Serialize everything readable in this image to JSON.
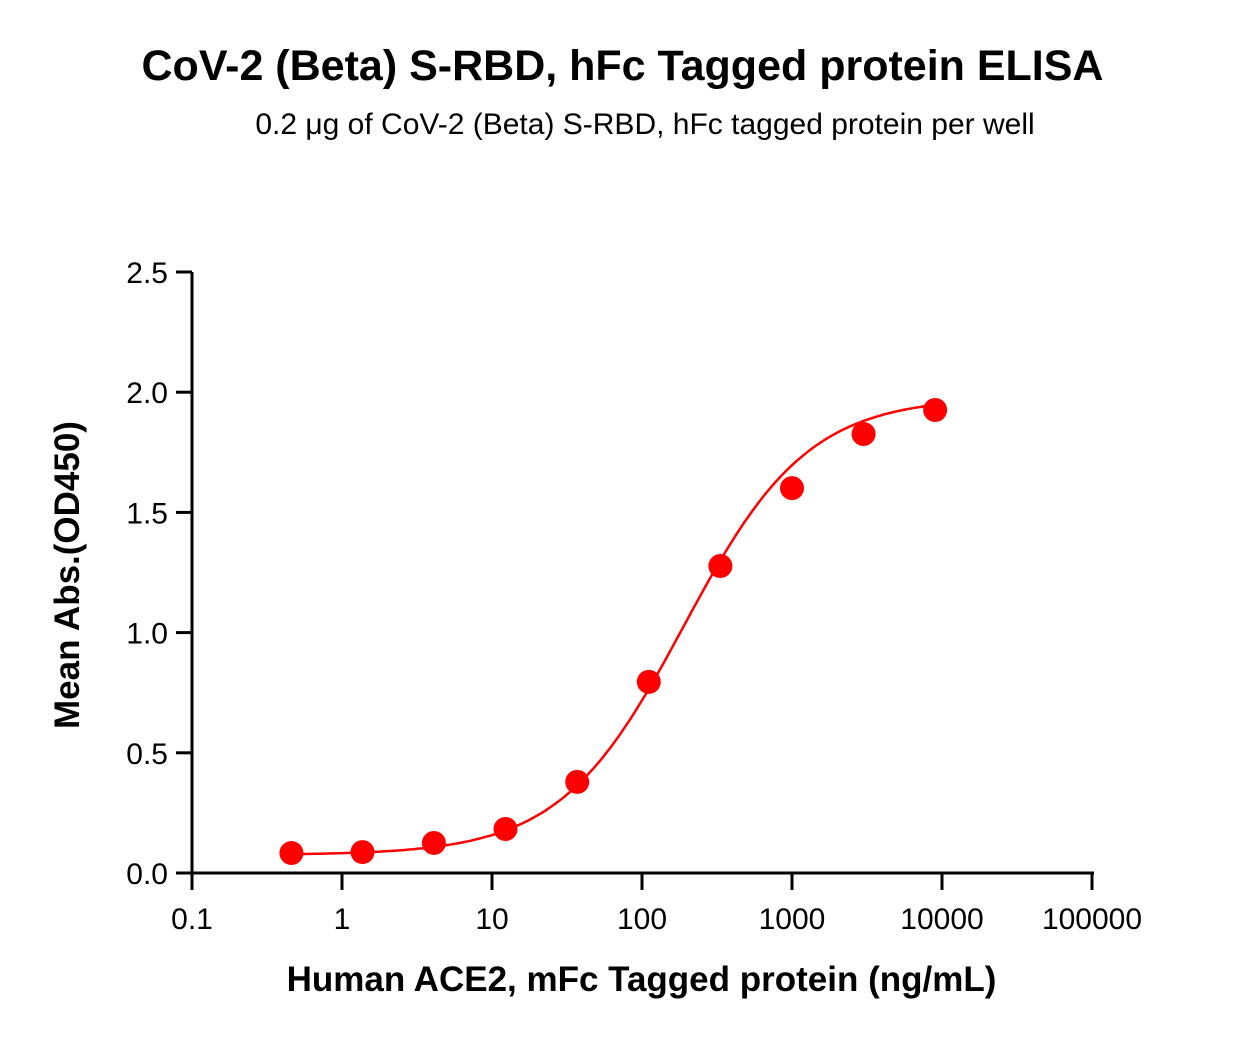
{
  "chart_data": {
    "type": "scatter",
    "title": "CoV-2 (Beta) S-RBD, hFc Tagged protein ELISA",
    "subtitle": "0.2 μg of CoV-2 (Beta) S-RBD, hFc tagged protein per well",
    "xlabel": "Human ACE2, mFc Tagged protein (ng/mL)",
    "ylabel": "Mean Abs.(OD450)",
    "xscale": "log",
    "xlim": [
      0.1,
      100000
    ],
    "ylim": [
      0,
      2.5
    ],
    "x_ticks": [
      "0.1",
      "1",
      "10",
      "100",
      "1000",
      "10000",
      "100000"
    ],
    "y_ticks": [
      "0.0",
      "0.5",
      "1.0",
      "1.5",
      "2.0",
      "2.5"
    ],
    "grid": false,
    "legend": null,
    "series": [
      {
        "name": "Human ACE2, mFc Tagged protein",
        "color": "#ff0000",
        "x": [
          0.46,
          1.37,
          4.1,
          12.3,
          37,
          111,
          333,
          1000,
          3000,
          9000
        ],
        "y": [
          0.083,
          0.087,
          0.125,
          0.183,
          0.379,
          0.795,
          1.277,
          1.601,
          1.826,
          1.926
        ],
        "fit": {
          "model": "4PL",
          "bottom": 0.075,
          "top": 1.98,
          "ec50": 190,
          "hill": 1.05
        }
      }
    ]
  }
}
